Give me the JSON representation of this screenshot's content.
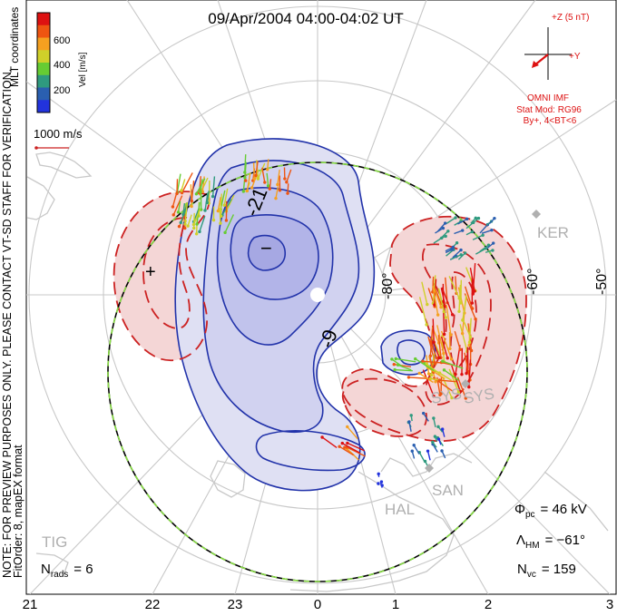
{
  "header": {
    "title": "09/Apr/2004 04:00-04:02 UT"
  },
  "colorbar": {
    "label": "Vel [m/s]",
    "coords_label": "MLT coordinates",
    "ticks": [
      "600",
      "400",
      "200"
    ],
    "colors": [
      "#dd1111",
      "#ee5511",
      "#f5a020",
      "#cfd02a",
      "#66cc33",
      "#2f9a7f",
      "#2a5fb0",
      "#2233dd"
    ]
  },
  "scale_vector": {
    "label": "1000 m/s",
    "color": "#cc2222"
  },
  "imf": {
    "plus_z_label": "+Z (5 nT)",
    "plus_y_label": "+Y",
    "source_label": "OMNI IMF",
    "stat_model": "Stat Mod: RG96",
    "condition": "By+, 4<BT<6",
    "color": "#dd1111"
  },
  "side_note": {
    "line1": "NOTE: FOR PREVIEW PURPOSES ONLY. PLEASE CONTACT VT-SD STAFF FOR VERIFICATION.",
    "line2": "FitOrder: 8, mapEX format"
  },
  "stations": [
    "KER",
    "SYS",
    "SYS",
    "SAN",
    "HAL",
    "TIG"
  ],
  "latitude_labels": [
    "-80°",
    "-60°",
    "-50°"
  ],
  "mlt_labels": [
    "21",
    "22",
    "23",
    "0",
    "1",
    "2",
    "3"
  ],
  "stats": {
    "nrads_label": "N",
    "nrads_sub": "rads",
    "nrads_value": "= 6",
    "phi_label": "Φ",
    "phi_sub": "pc",
    "phi_value": "= 46 kV",
    "lambda_label": "Λ",
    "lambda_sub": "HM",
    "lambda_value": "= −61°",
    "nvc_label": "N",
    "nvc_sub": "vc",
    "nvc_value": "= 159"
  },
  "chart_data": {
    "type": "polar convection map",
    "potential_labels": [
      "-21",
      "-9"
    ],
    "min_marker": "−",
    "max_marker": "+",
    "negative_color": "#2233aa",
    "positive_color": "#cc2222"
  }
}
